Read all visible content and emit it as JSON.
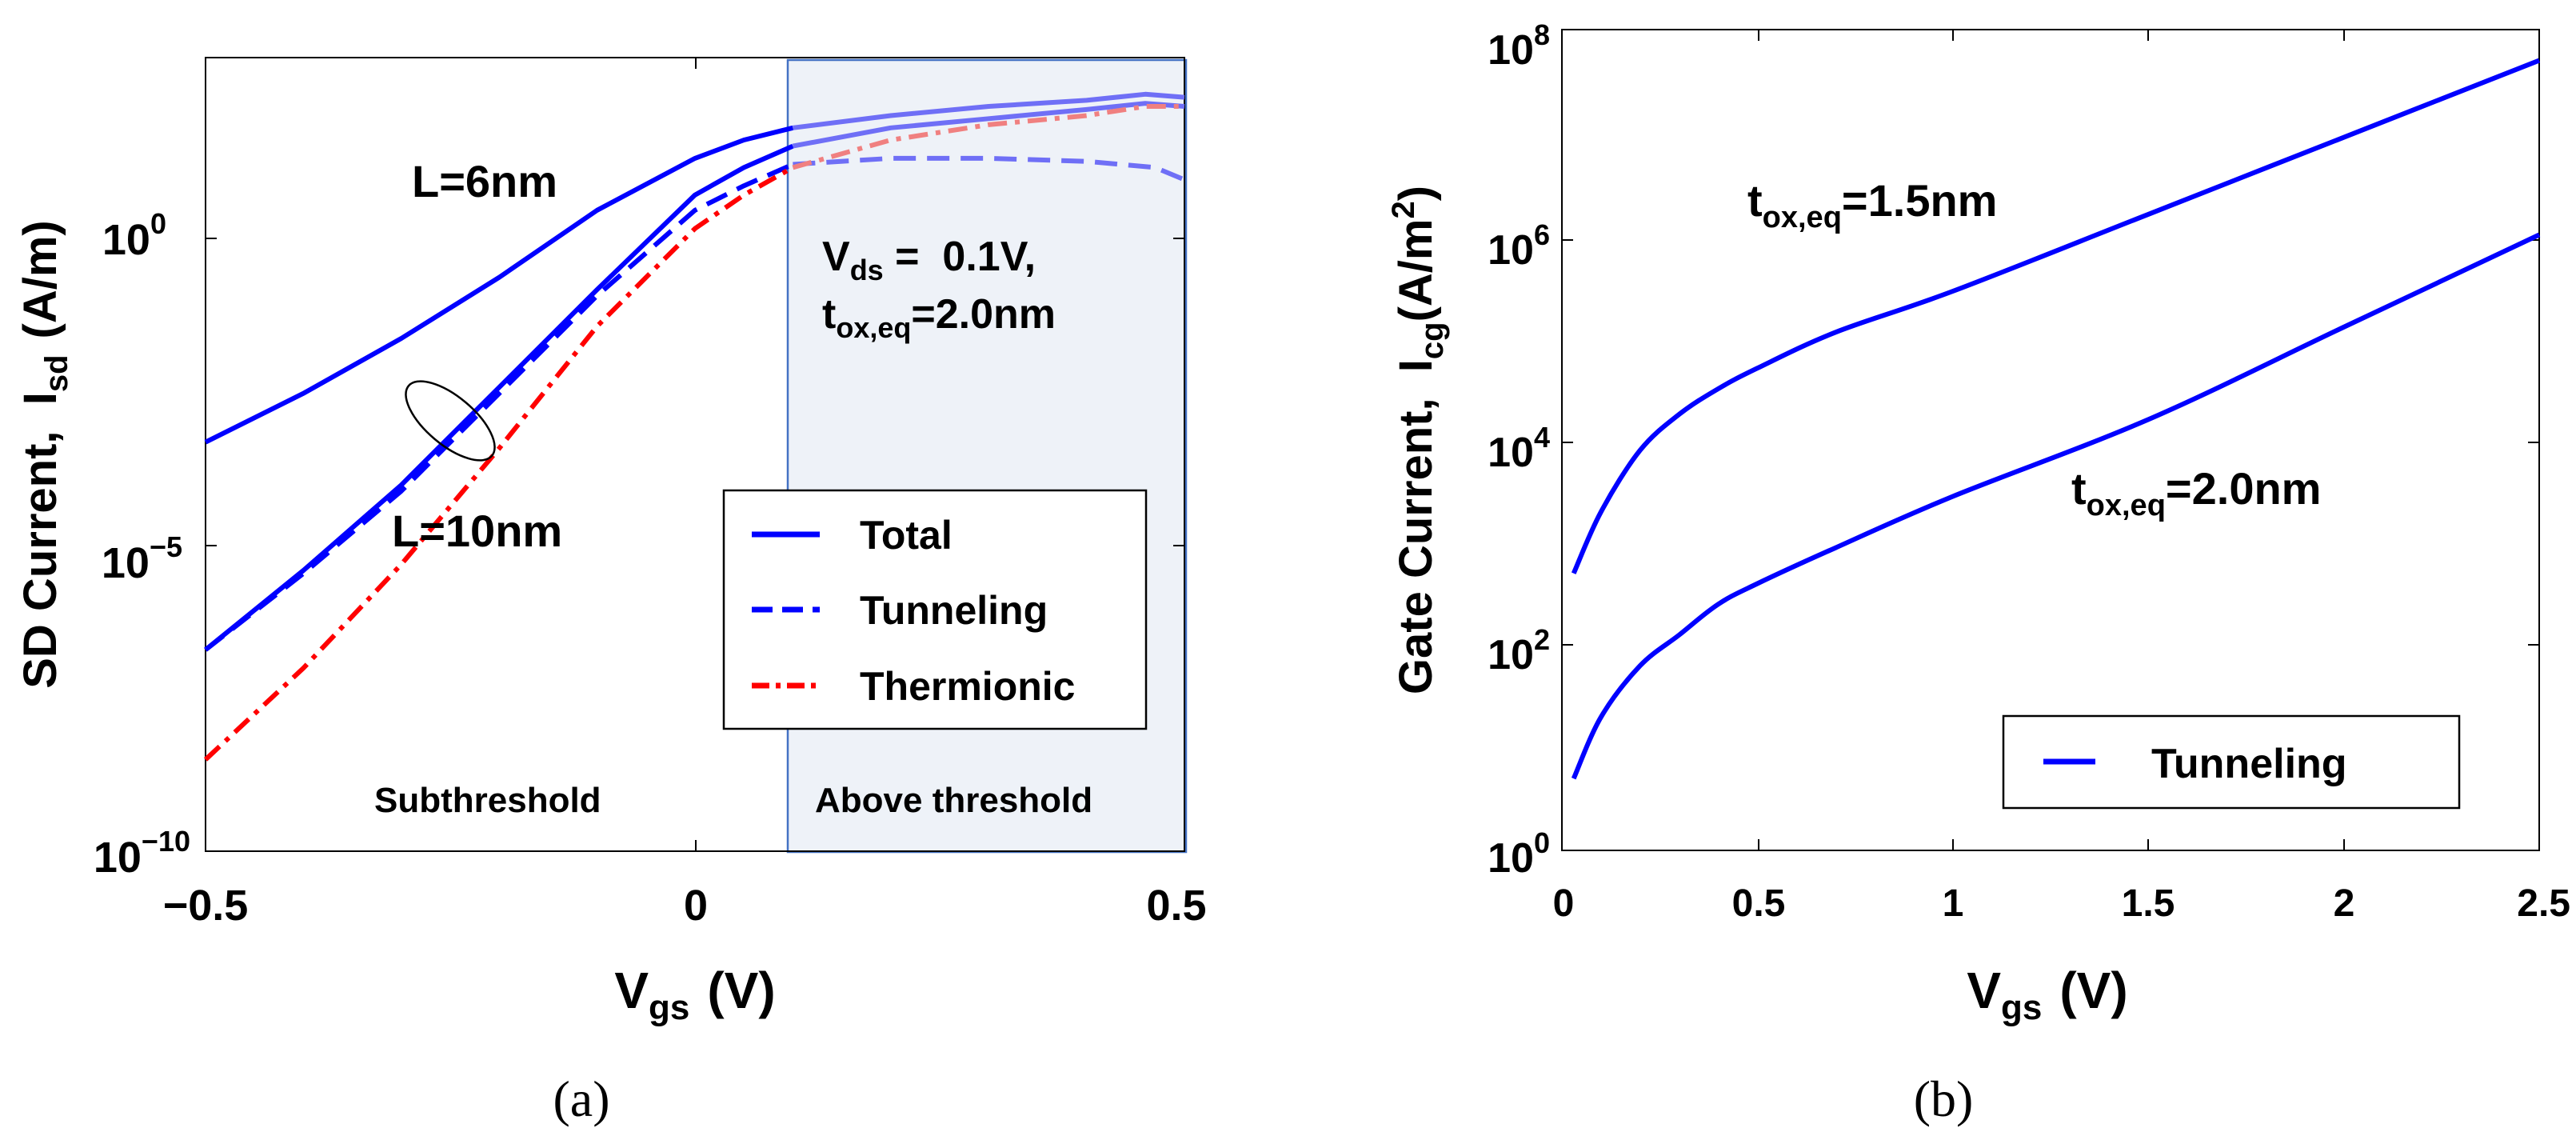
{
  "colors": {
    "total": "#0000ff",
    "total_light": "#6f6ff6",
    "tunneling": "#0000ff",
    "tunneling_light": "#6f6ff6",
    "thermionic": "#ff0000",
    "thermionic_light": "#f08080",
    "above_threshold_fill": "#eef2f8",
    "above_threshold_border": "#4472c4"
  },
  "chart_data": [
    {
      "type": "line",
      "panel_label": "(a)",
      "xlabel_main": "V",
      "xlabel_sub": "gs",
      "xlabel_unit": "(V)",
      "ylabel_main": "SD Current,  I",
      "ylabel_sub": "sd",
      "ylabel_unit": "(A/m)",
      "y_scale": "log",
      "xlim": [
        -0.5,
        0.5
      ],
      "ylim_log10": [
        -10,
        3
      ],
      "xticks": [
        {
          "value": -0.5,
          "label": "−0.5"
        },
        {
          "value": 0,
          "label": "0"
        },
        {
          "value": 0.5,
          "label": "0.5"
        }
      ],
      "yticks": [
        {
          "exp": 0,
          "base": "10",
          "sup": "0"
        },
        {
          "exp": -5,
          "base": "10",
          "sup": "−5"
        },
        {
          "exp": -10,
          "base": "10",
          "sup": "−10"
        }
      ],
      "highlight_region": {
        "x": [
          0.1,
          0.5
        ],
        "label": "Above threshold"
      },
      "region_labels": [
        {
          "text": "Subthreshold"
        }
      ],
      "annotations": {
        "l6": "L=6nm",
        "l10": "L=10nm",
        "cond1_main": "V",
        "cond1_sub": "ds",
        "cond1_rest": " =  0.1V,",
        "cond2_main": "t",
        "cond2_sub": "ox,eq",
        "cond2_rest": "=2.0nm"
      },
      "legend": {
        "position": "lower-right",
        "entries": [
          "Total",
          "Tunneling",
          "Thermionic"
        ]
      },
      "series": [
        {
          "name": "Total, L=6nm",
          "style": "solid",
          "x": [
            -0.5,
            -0.4,
            -0.3,
            -0.2,
            -0.1,
            0,
            0.05,
            0.1,
            0.2,
            0.3,
            0.4,
            0.46,
            0.5
          ],
          "log10y": [
            -3.3,
            -2.5,
            -1.6,
            -0.6,
            0.5,
            1.35,
            1.65,
            1.85,
            2.05,
            2.2,
            2.3,
            2.4,
            2.35
          ]
        },
        {
          "name": "Total, L=10nm",
          "style": "solid",
          "x": [
            -0.5,
            -0.4,
            -0.3,
            -0.2,
            -0.1,
            0,
            0.05,
            0.1,
            0.2,
            0.3,
            0.4,
            0.46,
            0.5
          ],
          "log10y": [
            -6.7,
            -5.4,
            -4.0,
            -2.4,
            -0.8,
            0.75,
            1.2,
            1.55,
            1.85,
            2.0,
            2.15,
            2.25,
            2.2
          ]
        },
        {
          "name": "Tunneling, L=10nm",
          "style": "dash",
          "x": [
            -0.5,
            -0.4,
            -0.3,
            -0.2,
            -0.1,
            0,
            0.05,
            0.1,
            0.2,
            0.3,
            0.4,
            0.47,
            0.5
          ],
          "log10y": [
            -6.7,
            -5.45,
            -4.1,
            -2.5,
            -0.9,
            0.5,
            0.9,
            1.25,
            1.35,
            1.35,
            1.3,
            1.2,
            1.0
          ]
        },
        {
          "name": "Thermionic, L=10nm",
          "style": "dashdot",
          "x": [
            -0.5,
            -0.4,
            -0.3,
            -0.2,
            -0.1,
            0,
            0.05,
            0.1,
            0.2,
            0.3,
            0.4,
            0.46,
            0.5
          ],
          "log10y": [
            -8.5,
            -7.0,
            -5.3,
            -3.4,
            -1.4,
            0.2,
            0.75,
            1.2,
            1.65,
            1.9,
            2.05,
            2.2,
            2.2
          ]
        }
      ],
      "curve_group_marker": {
        "x": -0.25,
        "log10y": -2.95
      }
    },
    {
      "type": "line",
      "panel_label": "(b)",
      "xlabel_main": "V",
      "xlabel_sub": "gs",
      "xlabel_unit": "(V)",
      "ylabel_main": "Gate Current,  I",
      "ylabel_sub": "cg",
      "ylabel_unit_pre": "(A/m",
      "ylabel_unit_sup": "2",
      "ylabel_unit_post": ")",
      "y_scale": "log",
      "xlim": [
        0,
        2.5
      ],
      "ylim_log10": [
        0,
        8
      ],
      "xticks": [
        {
          "value": 0,
          "label": "0"
        },
        {
          "value": 0.5,
          "label": "0.5"
        },
        {
          "value": 1,
          "label": "1"
        },
        {
          "value": 1.5,
          "label": "1.5"
        },
        {
          "value": 2,
          "label": "2"
        },
        {
          "value": 2.5,
          "label": "2.5"
        }
      ],
      "yticks": [
        {
          "exp": 0,
          "base": "10",
          "sup": "0"
        },
        {
          "exp": 2,
          "base": "10",
          "sup": "2"
        },
        {
          "exp": 4,
          "base": "10",
          "sup": "4"
        },
        {
          "exp": 6,
          "base": "10",
          "sup": "6"
        },
        {
          "exp": 8,
          "base": "10",
          "sup": "8"
        }
      ],
      "annotations": {
        "t15_main": "t",
        "t15_sub": "ox,eq",
        "t15_rest": "=1.5nm",
        "t20_main": "t",
        "t20_sub": "ox,eq",
        "t20_rest": "=2.0nm"
      },
      "legend": {
        "position": "lower-right",
        "entries": [
          "Tunneling"
        ]
      },
      "series": [
        {
          "name": "t_ox,eq=1.5nm",
          "x": [
            0.03,
            0.1,
            0.2,
            0.3,
            0.4,
            0.5,
            0.7,
            1.0,
            1.5,
            2.0,
            2.5
          ],
          "log10y": [
            2.7,
            3.3,
            3.9,
            4.25,
            4.5,
            4.7,
            5.05,
            5.45,
            6.2,
            6.95,
            7.7
          ]
        },
        {
          "name": "t_ox,eq=2.0nm",
          "x": [
            0.03,
            0.1,
            0.2,
            0.3,
            0.4,
            0.5,
            0.7,
            1.0,
            1.5,
            2.0,
            2.5
          ],
          "log10y": [
            0.7,
            1.3,
            1.8,
            2.1,
            2.4,
            2.6,
            2.95,
            3.45,
            4.2,
            5.1,
            6.0
          ]
        }
      ]
    }
  ]
}
